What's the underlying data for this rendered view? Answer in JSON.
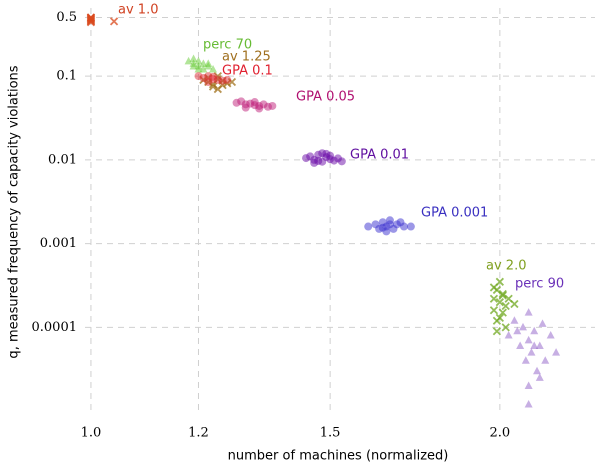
{
  "chart_data": {
    "type": "scatter",
    "xlabel": "number of machines (normalized)",
    "ylabel": "q, measured frequency of capacity violations",
    "xscale": "log",
    "yscale": "log",
    "grid": true,
    "xlim": [
      0.99,
      2.35
    ],
    "ylim": [
      9e-06,
      0.65
    ],
    "xticks": [
      {
        "value": 1,
        "label": "1.0"
      },
      1.2,
      1.5,
      {
        "value": 2,
        "label": "2.0"
      }
    ],
    "yticks": [
      0.5,
      0.1,
      0.01,
      0.001,
      0.0001
    ],
    "series": [
      {
        "name": "av 1.0",
        "color": "#d94a1e",
        "marker": "x",
        "x": [
          1,
          1,
          1,
          1,
          1,
          1,
          1,
          1,
          1.04
        ],
        "values": [
          0.5,
          0.48,
          0.46,
          0.45,
          0.47,
          0.49,
          0.44,
          0.5,
          0.45
        ]
      },
      {
        "name": "perc 70",
        "color": "#66cc33",
        "marker": "triangle",
        "x": [
          1.18,
          1.19,
          1.19,
          1.2,
          1.2,
          1.21,
          1.21,
          1.22,
          1.22,
          1.23,
          1.2,
          1.19
        ],
        "values": [
          0.15,
          0.14,
          0.16,
          0.13,
          0.15,
          0.14,
          0.12,
          0.13,
          0.14,
          0.12,
          0.12,
          0.13
        ]
      },
      {
        "name": "av 1.25",
        "color": "#a0701a",
        "marker": "x",
        "x": [
          1.21,
          1.22,
          1.23,
          1.24,
          1.25,
          1.26,
          1.23,
          1.24,
          1.22,
          1.25,
          1.27,
          1.24
        ],
        "values": [
          0.09,
          0.085,
          0.08,
          0.092,
          0.088,
          0.082,
          0.075,
          0.07,
          0.095,
          0.078,
          0.085,
          0.1
        ]
      },
      {
        "name": "GPA 0.1",
        "color": "#e0303a",
        "marker": "circle",
        "x": [
          1.2,
          1.21,
          1.22,
          1.23,
          1.24,
          1.25,
          1.22,
          1.23,
          1.26
        ],
        "values": [
          0.1,
          0.095,
          0.1,
          0.092,
          0.09,
          0.088,
          0.085,
          0.098,
          0.09
        ]
      },
      {
        "name": "GPA 0.05",
        "color": "#c0207a",
        "marker": "circle",
        "x": [
          1.28,
          1.29,
          1.3,
          1.31,
          1.32,
          1.33,
          1.34,
          1.35,
          1.3,
          1.32,
          1.33,
          1.36
        ],
        "values": [
          0.048,
          0.05,
          0.046,
          0.047,
          0.045,
          0.044,
          0.046,
          0.043,
          0.042,
          0.049,
          0.041,
          0.044
        ]
      },
      {
        "name": "GPA 0.01",
        "color": "#6a0aa8",
        "marker": "circle",
        "x": [
          1.44,
          1.45,
          1.46,
          1.47,
          1.48,
          1.49,
          1.5,
          1.51,
          1.52,
          1.46,
          1.48,
          1.5,
          1.47,
          1.49,
          1.53
        ],
        "values": [
          0.0105,
          0.011,
          0.01,
          0.0115,
          0.0095,
          0.0108,
          0.0102,
          0.0098,
          0.0104,
          0.0092,
          0.012,
          0.0112,
          0.0097,
          0.0118,
          0.0096
        ]
      },
      {
        "name": "GPA 0.001",
        "color": "#3a30d0",
        "marker": "circle",
        "x": [
          1.6,
          1.62,
          1.63,
          1.64,
          1.65,
          1.66,
          1.67,
          1.68,
          1.7,
          1.72,
          1.65,
          1.66,
          1.64,
          1.69
        ],
        "values": [
          0.0016,
          0.0017,
          0.0015,
          0.0018,
          0.0016,
          0.0019,
          0.0015,
          0.0017,
          0.0016,
          0.0016,
          0.0014,
          0.0017,
          0.00155,
          0.0018
        ]
      },
      {
        "name": "av 2.0",
        "color": "#70a820",
        "marker": "x",
        "x": [
          1.98,
          1.98,
          1.98,
          1.99,
          1.99,
          2.0,
          2.0,
          2.01,
          2.01,
          2.02,
          2.02,
          2.03,
          2.05,
          1.99,
          2.0,
          2.01
        ],
        "values": [
          0.0003,
          0.00022,
          0.00016,
          0.00028,
          0.00012,
          0.00035,
          0.0002,
          0.00025,
          0.00015,
          0.00018,
          0.0001,
          0.00022,
          0.00019,
          9e-05,
          0.00013,
          0.00024
        ]
      },
      {
        "name": "perc 90",
        "color": "#9060c8",
        "marker": "triangle",
        "x": [
          2.03,
          2.05,
          2.07,
          2.08,
          2.09,
          2.1,
          2.1,
          2.11,
          2.12,
          2.13,
          2.14,
          2.15,
          2.16,
          2.18,
          2.2,
          2.1,
          2.12,
          2.14,
          2.06,
          2.1
        ],
        "values": [
          8e-05,
          0.00012,
          6e-05,
          0.0001,
          4e-05,
          7e-05,
          2e-05,
          5e-05,
          9e-05,
          3e-05,
          6e-05,
          0.00011,
          4e-05,
          8e-05,
          5e-05,
          1.2e-05,
          6e-05,
          2.5e-05,
          9e-05,
          0.00015
        ]
      }
    ]
  }
}
